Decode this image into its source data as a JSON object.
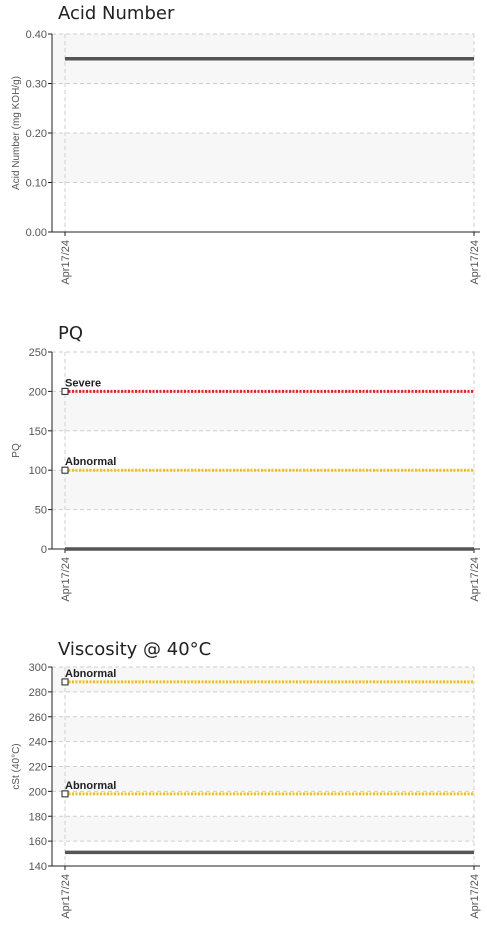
{
  "chart_data": [
    {
      "type": "line",
      "title": "Acid Number",
      "ylabel": "Acid Number (mg KOH/g)",
      "ylim": [
        0,
        0.4
      ],
      "yticks": [
        0,
        0.1,
        0.2,
        0.3,
        0.4
      ],
      "ytick_labels": [
        "0.00",
        "0.10",
        "0.20",
        "0.30",
        "0.40"
      ],
      "x": [
        "Apr17/24",
        "Apr17/24"
      ],
      "series": [
        {
          "values": [
            0.35,
            0.35
          ],
          "color": "#555555"
        }
      ],
      "thresholds": [],
      "grid": true
    },
    {
      "type": "line",
      "title": "PQ",
      "ylabel": "PQ",
      "ylim": [
        0,
        250
      ],
      "yticks": [
        0,
        50,
        100,
        150,
        200,
        250
      ],
      "ytick_labels": [
        "0",
        "50",
        "100",
        "150",
        "200",
        "250"
      ],
      "x": [
        "Apr17/24",
        "Apr17/24"
      ],
      "series": [
        {
          "values": [
            0,
            0
          ],
          "color": "#555555"
        }
      ],
      "thresholds": [
        {
          "label": "Severe",
          "value": 200,
          "color": "#e8231f"
        },
        {
          "label": "Abnormal",
          "value": 100,
          "color": "#f2c014"
        }
      ],
      "grid": true
    },
    {
      "type": "line",
      "title": "Viscosity @ 40°C",
      "ylabel": "cSt (40°C)",
      "ylim": [
        140,
        300
      ],
      "yticks": [
        140,
        160,
        180,
        200,
        220,
        240,
        260,
        280,
        300
      ],
      "ytick_labels": [
        "140",
        "160",
        "180",
        "200",
        "220",
        "240",
        "260",
        "280",
        "300"
      ],
      "x": [
        "Apr17/24",
        "Apr17/24"
      ],
      "series": [
        {
          "values": [
            151,
            151
          ],
          "color": "#555555"
        }
      ],
      "thresholds": [
        {
          "label": "Abnormal",
          "value": 288,
          "color": "#f2c014"
        },
        {
          "label": "Abnormal",
          "value": 198,
          "color": "#f2c014"
        }
      ],
      "grid": true
    }
  ]
}
